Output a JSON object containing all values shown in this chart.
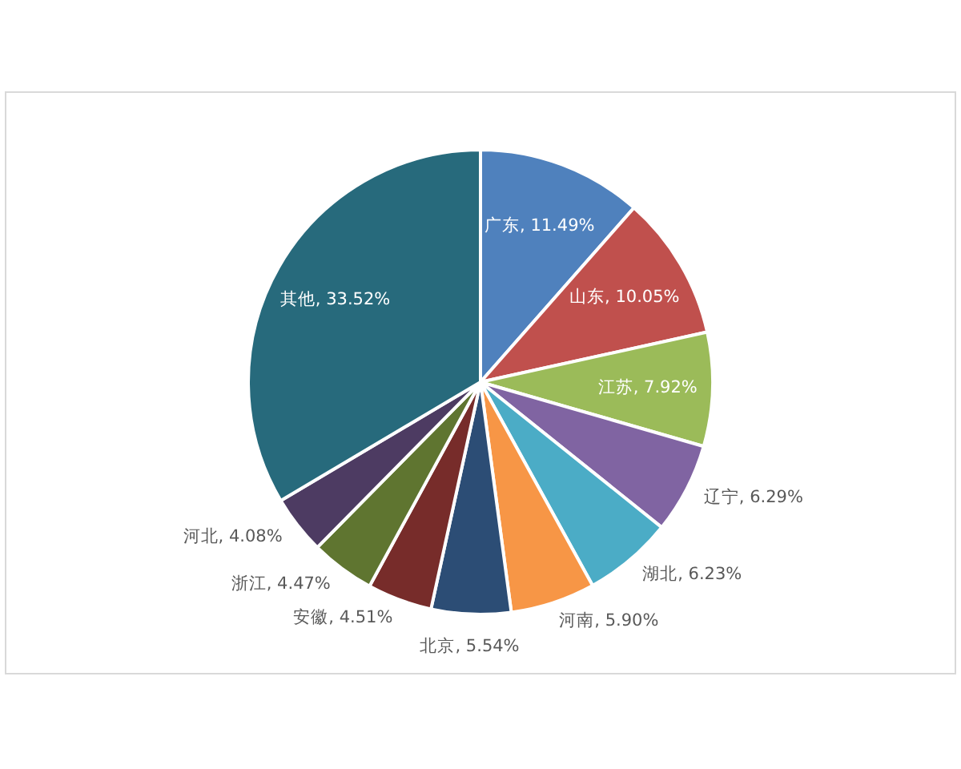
{
  "chart_data": {
    "type": "pie",
    "categories": [
      "广东",
      "山东",
      "江苏",
      "辽宁",
      "湖北",
      "河南",
      "北京",
      "安徽",
      "浙江",
      "河北",
      "其他"
    ],
    "values": [
      11.49,
      10.05,
      7.92,
      6.29,
      6.23,
      5.9,
      5.54,
      4.51,
      4.47,
      4.08,
      33.52
    ],
    "colors": [
      "#4f81bd",
      "#c0504d",
      "#9bbb59",
      "#8064a2",
      "#4bacc6",
      "#f79646",
      "#2c4d75",
      "#772c2a",
      "#5f7530",
      "#4d3b62",
      "#276a7c"
    ],
    "value_labels": [
      "11.49%",
      "10.05%",
      "7.92%",
      "6.29%",
      "6.23%",
      "5.90%",
      "5.54%",
      "4.51%",
      "4.47%",
      "4.08%",
      "33.52%"
    ]
  }
}
